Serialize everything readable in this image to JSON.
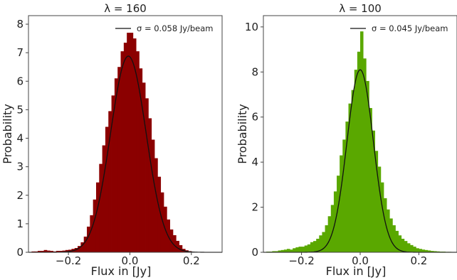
{
  "chart_data": [
    {
      "type": "bar",
      "panel": "left",
      "title": "λ = 160",
      "xlabel": "Flux in [Jy]",
      "ylabel": "Probability",
      "xlim": [
        -0.33,
        0.3
      ],
      "ylim": [
        0,
        8.3
      ],
      "xticks": [
        {
          "v": -0.2,
          "label": "−0.2"
        },
        {
          "v": 0.0,
          "label": "0.0"
        },
        {
          "v": 0.2,
          "label": "0.2"
        }
      ],
      "yticks": [
        0,
        1,
        2,
        3,
        4,
        5,
        6,
        7,
        8
      ],
      "bar_color": "#8b0000",
      "bin_width": 0.01,
      "bins": {
        "x_left": [
          -0.32,
          -0.31,
          -0.3,
          -0.29,
          -0.28,
          -0.27,
          -0.26,
          -0.25,
          -0.24,
          -0.23,
          -0.22,
          -0.21,
          -0.2,
          -0.19,
          -0.18,
          -0.17,
          -0.16,
          -0.15,
          -0.14,
          -0.13,
          -0.12,
          -0.11,
          -0.1,
          -0.09,
          -0.08,
          -0.07,
          -0.06,
          -0.05,
          -0.04,
          -0.03,
          -0.02,
          -0.01,
          0.0,
          0.01,
          0.02,
          0.03,
          0.04,
          0.05,
          0.06,
          0.07,
          0.08,
          0.09,
          0.1,
          0.11,
          0.12,
          0.13,
          0.14,
          0.15,
          0.16,
          0.17,
          0.18,
          0.19
        ],
        "values": [
          0.03,
          0.03,
          0.05,
          0.05,
          0.08,
          0.06,
          0.05,
          0.03,
          0.05,
          0.05,
          0.06,
          0.08,
          0.09,
          0.12,
          0.15,
          0.22,
          0.35,
          0.55,
          0.9,
          1.3,
          1.85,
          2.45,
          3.1,
          3.75,
          4.4,
          4.95,
          5.5,
          6.1,
          6.5,
          7.05,
          7.35,
          7.7,
          7.7,
          7.5,
          7.05,
          6.45,
          5.95,
          5.4,
          4.7,
          3.95,
          3.3,
          2.65,
          2.1,
          1.6,
          1.15,
          0.8,
          0.6,
          0.4,
          0.25,
          0.12,
          0.07,
          0.04
        ]
      },
      "fit_curve": {
        "label": "σ = 0.058 Jy/beam",
        "sigma": 0.058,
        "mean": -0.005,
        "peak": 6.88
      }
    },
    {
      "type": "bar",
      "panel": "right",
      "title": "λ = 100",
      "xlabel": "Flux in [Jy]",
      "ylabel": "Probability",
      "xlim": [
        -0.33,
        0.33
      ],
      "ylim": [
        0,
        10.5
      ],
      "xticks": [
        {
          "v": -0.2,
          "label": "−0.2"
        },
        {
          "v": 0.0,
          "label": "0.0"
        },
        {
          "v": 0.2,
          "label": "0.2"
        }
      ],
      "yticks": [
        0,
        2,
        4,
        6,
        8,
        10
      ],
      "bar_color": "#5aa800",
      "bin_width": 0.01,
      "bins": {
        "x_left": [
          -0.32,
          -0.31,
          -0.3,
          -0.29,
          -0.28,
          -0.27,
          -0.26,
          -0.25,
          -0.24,
          -0.23,
          -0.22,
          -0.21,
          -0.2,
          -0.19,
          -0.18,
          -0.17,
          -0.16,
          -0.15,
          -0.14,
          -0.13,
          -0.12,
          -0.11,
          -0.1,
          -0.09,
          -0.08,
          -0.07,
          -0.06,
          -0.05,
          -0.04,
          -0.03,
          -0.02,
          -0.01,
          0.0,
          0.01,
          0.02,
          0.03,
          0.04,
          0.05,
          0.06,
          0.07,
          0.08,
          0.09,
          0.1,
          0.11,
          0.12,
          0.13,
          0.14,
          0.15,
          0.16,
          0.17,
          0.18,
          0.19,
          0.2,
          0.21,
          0.22,
          0.23,
          0.24,
          0.25,
          0.26,
          0.27,
          0.28,
          0.29,
          0.3,
          0.31
        ],
        "values": [
          0.03,
          0.03,
          0.05,
          0.05,
          0.08,
          0.1,
          0.12,
          0.15,
          0.12,
          0.18,
          0.22,
          0.25,
          0.25,
          0.3,
          0.35,
          0.45,
          0.5,
          0.6,
          0.75,
          0.9,
          1.2,
          1.6,
          2.1,
          2.7,
          3.4,
          4.3,
          5.0,
          5.8,
          6.6,
          7.2,
          8.1,
          8.9,
          9.8,
          8.6,
          7.6,
          6.4,
          5.4,
          4.5,
          3.8,
          3.1,
          2.4,
          1.9,
          1.5,
          1.2,
          0.95,
          0.75,
          0.6,
          0.5,
          0.4,
          0.32,
          0.25,
          0.18,
          0.15,
          0.12,
          0.1,
          0.08,
          0.06,
          0.05,
          0.04,
          0.03,
          0.03,
          0.02,
          0.02,
          0.01
        ]
      },
      "fit_curve": {
        "label": "σ = 0.045 Jy/beam",
        "sigma": 0.045,
        "mean": 0.0,
        "peak": 8.1
      }
    }
  ]
}
